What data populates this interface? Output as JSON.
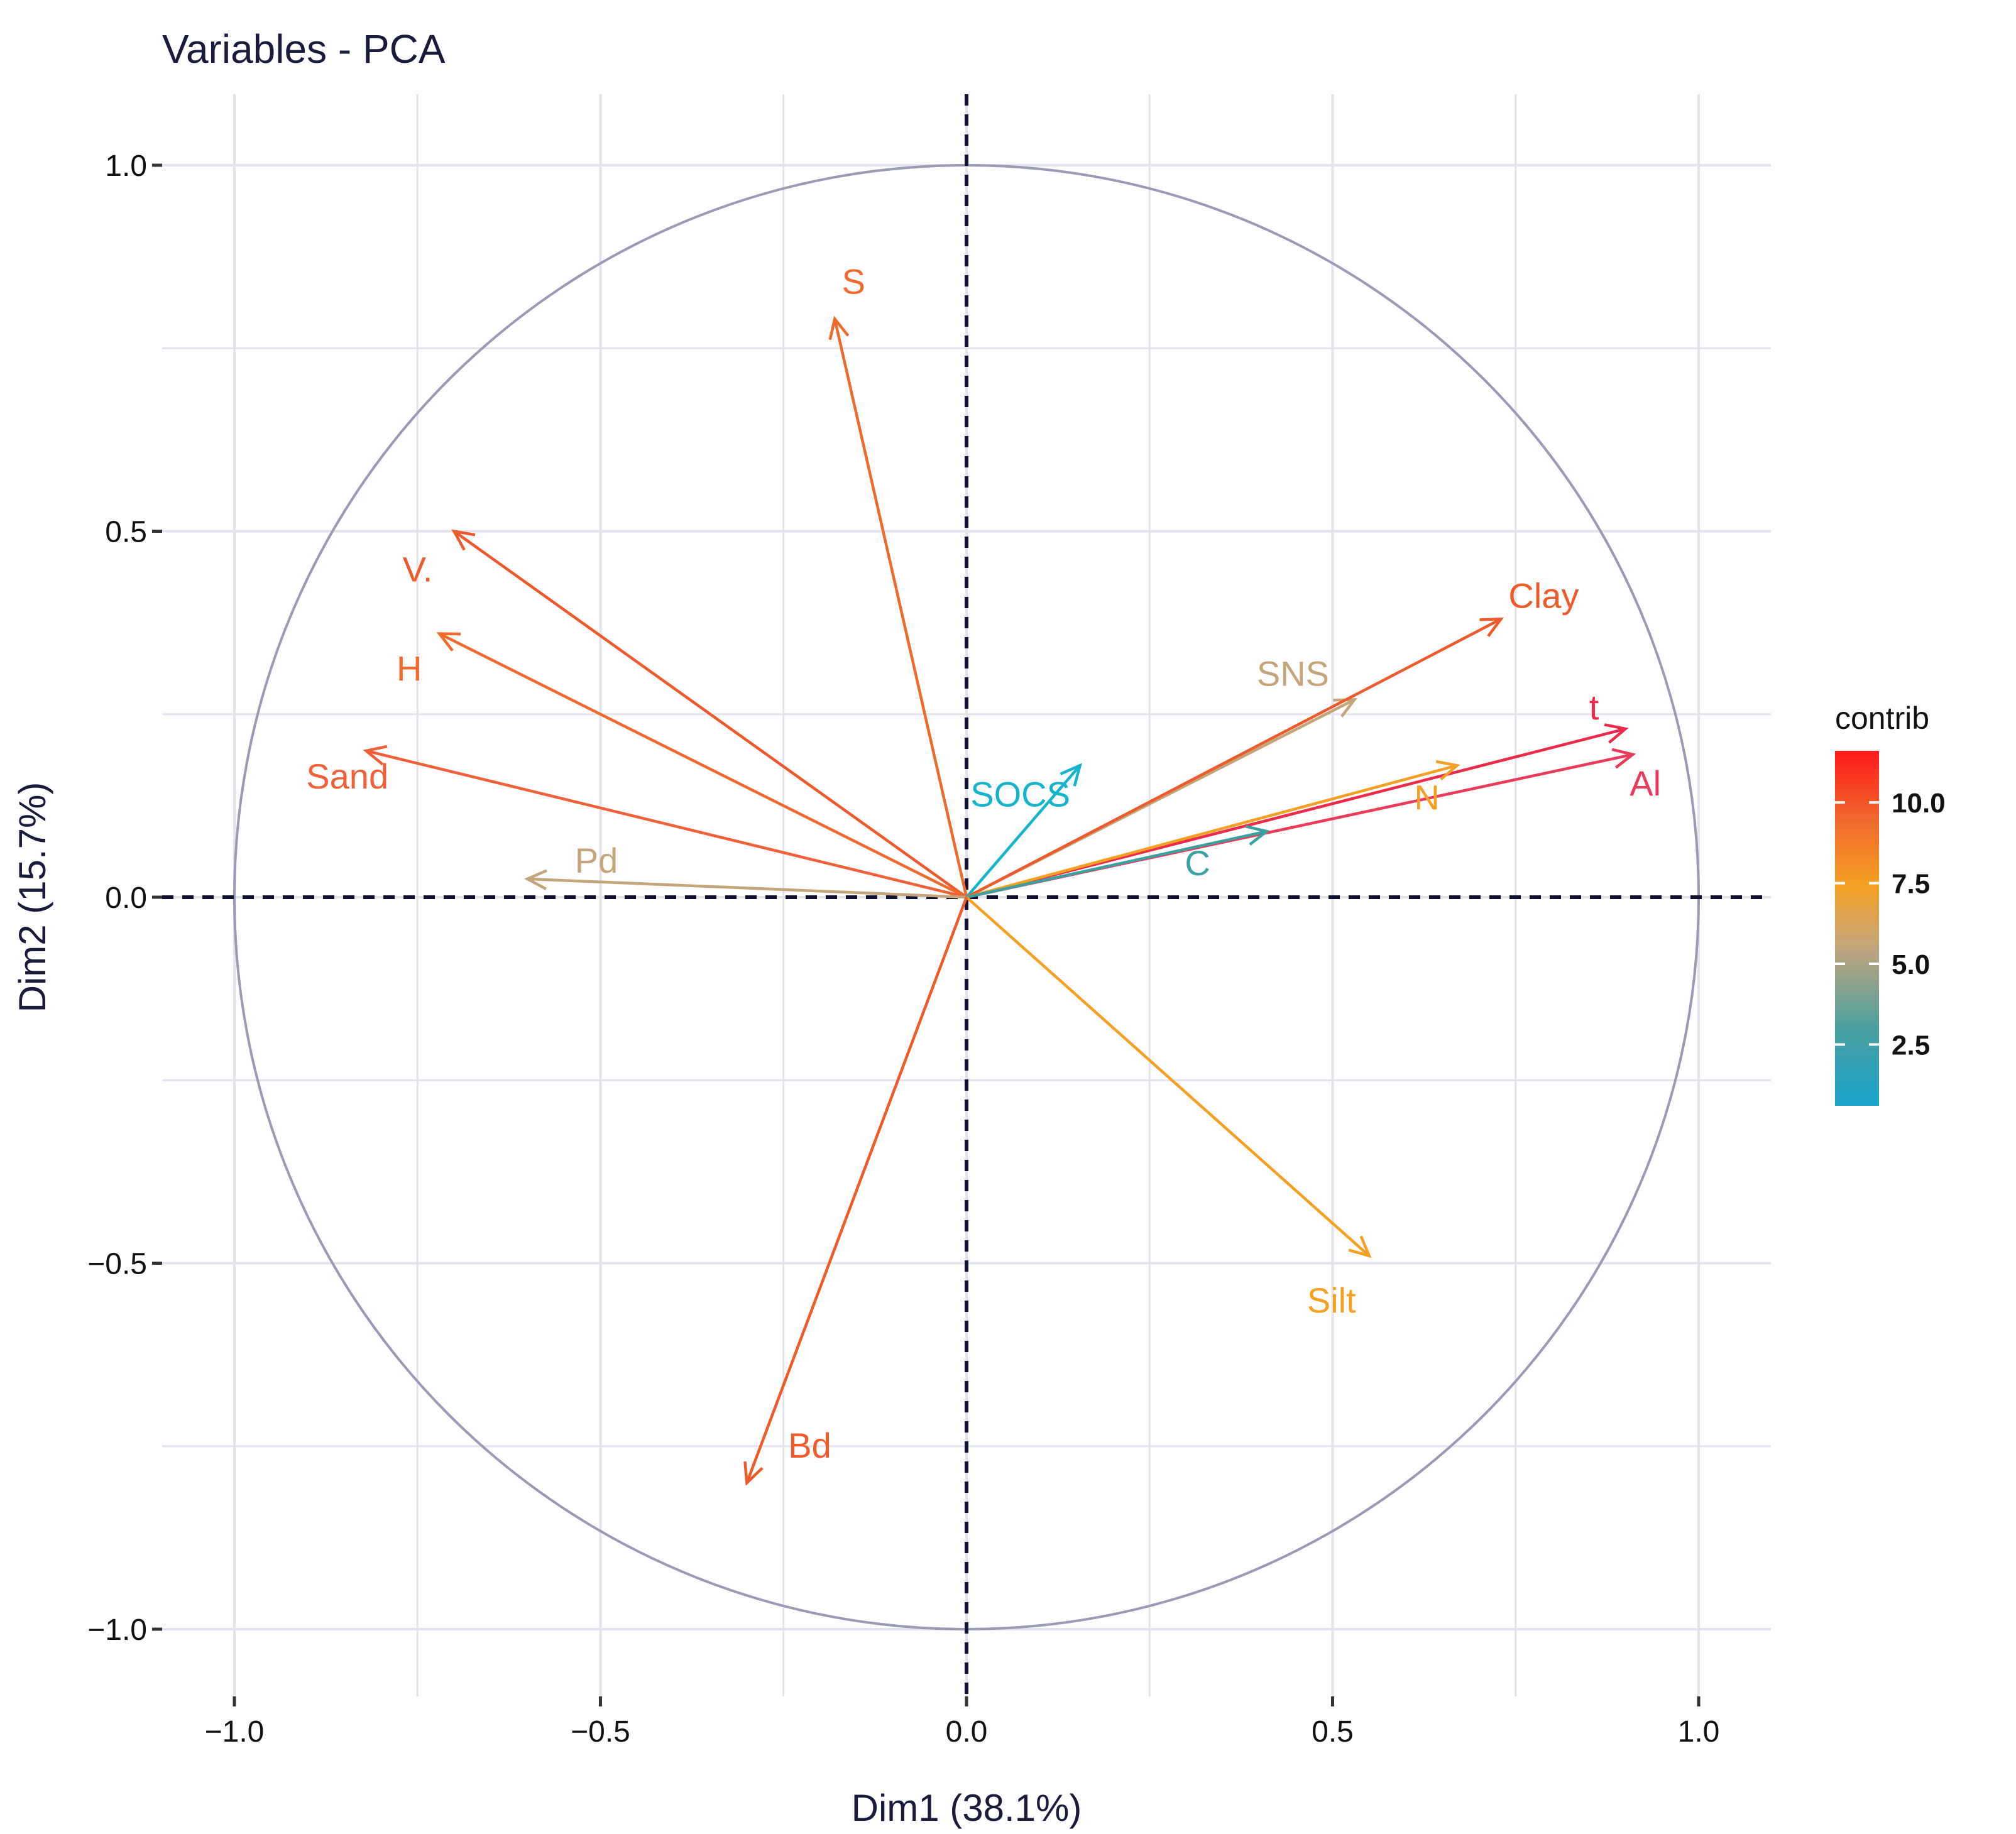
{
  "chart_data": {
    "type": "scatter",
    "subtype": "pca-variable-correlation-circle",
    "title": "Variables - PCA",
    "xlabel": "Dim1 (38.1%)",
    "ylabel": "Dim2 (15.7%)",
    "xlim": [
      -1.1,
      1.1
    ],
    "ylim": [
      -1.1,
      1.1
    ],
    "x_ticks": [
      -1.0,
      -0.5,
      0.0,
      0.5,
      1.0
    ],
    "y_ticks": [
      -1.0,
      -0.5,
      0.0,
      0.5,
      1.0
    ],
    "x_tick_labels": [
      "−1.0",
      "−0.5",
      "0.0",
      "0.5",
      "1.0"
    ],
    "y_tick_labels": [
      "−1.0",
      "−0.5",
      "0.0",
      "0.5",
      "1.0"
    ],
    "grid": true,
    "unit_circle": true,
    "variables": [
      {
        "name": "S",
        "x": -0.18,
        "y": 0.79,
        "contrib": 8.3,
        "color": "#f06a2c"
      },
      {
        "name": "V.",
        "x": -0.7,
        "y": 0.5,
        "contrib": 8.7,
        "color": "#f05a2a"
      },
      {
        "name": "H",
        "x": -0.72,
        "y": 0.36,
        "contrib": 8.2,
        "color": "#f06a2c"
      },
      {
        "name": "Sand",
        "x": -0.82,
        "y": 0.2,
        "contrib": 8.6,
        "color": "#f2603a"
      },
      {
        "name": "Pd",
        "x": -0.6,
        "y": 0.025,
        "contrib": 4.8,
        "color": "#c4a57a"
      },
      {
        "name": "SOCS",
        "x": 0.155,
        "y": 0.18,
        "contrib": 0.8,
        "color": "#14b4cc"
      },
      {
        "name": "SNS",
        "x": 0.53,
        "y": 0.27,
        "contrib": 5.0,
        "color": "#c4a57a"
      },
      {
        "name": "Clay",
        "x": 0.73,
        "y": 0.38,
        "contrib": 8.9,
        "color": "#f05a2a"
      },
      {
        "name": "t",
        "x": 0.9,
        "y": 0.23,
        "contrib": 11.2,
        "color": "#ee2a4a"
      },
      {
        "name": "Al",
        "x": 0.91,
        "y": 0.195,
        "contrib": 11.0,
        "color": "#ee3a5a"
      },
      {
        "name": "N",
        "x": 0.67,
        "y": 0.18,
        "contrib": 7.3,
        "color": "#f5a023"
      },
      {
        "name": "C",
        "x": 0.41,
        "y": 0.09,
        "contrib": 2.2,
        "color": "#3aa0a0"
      },
      {
        "name": "Silt",
        "x": 0.55,
        "y": -0.49,
        "contrib": 7.6,
        "color": "#f5a023"
      },
      {
        "name": "Bd",
        "x": -0.3,
        "y": -0.8,
        "contrib": 9.0,
        "color": "#f05a2a"
      }
    ],
    "legend": {
      "title": "contrib",
      "position": "right",
      "ticks": [
        2.5,
        5.0,
        7.5,
        10.0
      ],
      "tick_labels": [
        "2.5",
        "5.0",
        "7.5",
        "10.0"
      ],
      "range": [
        0.6,
        11.6
      ],
      "gradient": [
        "#1aa4cc",
        "#4a9f9f",
        "#c4a57a",
        "#f5a023",
        "#f06a2c",
        "#ff1a1a"
      ]
    }
  }
}
